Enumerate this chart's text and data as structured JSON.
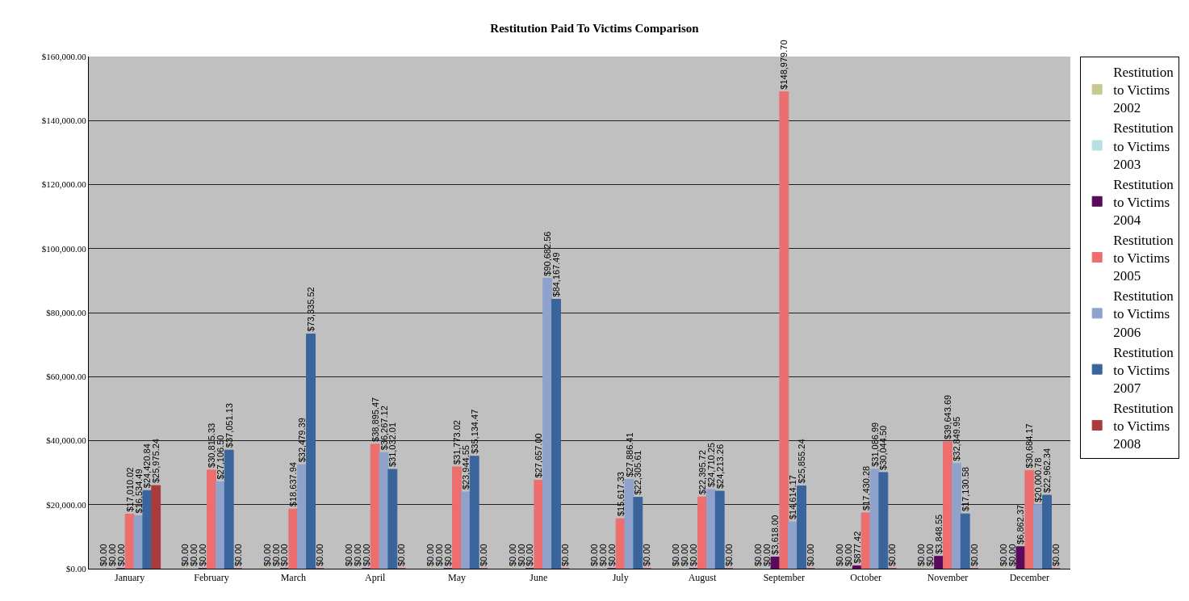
{
  "chart_data": {
    "type": "bar",
    "title": "Restitution Paid To Victims Comparison",
    "categories": [
      "January",
      "February",
      "March",
      "April",
      "May",
      "June",
      "July",
      "August",
      "September",
      "October",
      "November",
      "December"
    ],
    "series": [
      {
        "name": "Restitution to Victims 2002",
        "color": "#c8c890",
        "values": [
          0,
          0,
          0,
          0,
          0,
          0,
          0,
          0,
          0,
          0,
          0,
          0
        ],
        "value_labels": [
          "$0.00",
          "$0.00",
          "$0.00",
          "$0.00",
          "$0.00",
          "$0.00",
          "$0.00",
          "$0.00",
          "$0.00",
          "$0.00",
          "$0.00",
          "$0.00"
        ]
      },
      {
        "name": "Restitution to Victims 2003",
        "color": "#b8e0e0",
        "values": [
          0,
          0,
          0,
          0,
          0,
          0,
          0,
          0,
          0,
          0,
          0,
          0
        ],
        "value_labels": [
          "$0.00",
          "$0.00",
          "$0.00",
          "$0.00",
          "$0.00",
          "$0.00",
          "$0.00",
          "$0.00",
          "$0.00",
          "$0.00",
          "$0.00",
          "$0.00"
        ]
      },
      {
        "name": "Restitution to Victims 2004",
        "color": "#5a0a5a",
        "values": [
          0,
          0,
          0,
          0,
          0,
          0,
          0,
          0,
          3618.0,
          877.42,
          3848.55,
          6862.37
        ],
        "value_labels": [
          "$0.00",
          "$0.00",
          "$0.00",
          "$0.00",
          "$0.00",
          "$0.00",
          "$0.00",
          "$0.00",
          "$3,618.00",
          "$877.42",
          "$3,848.55",
          "$6,862.37"
        ]
      },
      {
        "name": "Restitution to Victims 2005",
        "color": "#ec6e6e",
        "values": [
          17010.02,
          30815.33,
          18637.94,
          38895.47,
          31773.02,
          27657.0,
          15617.33,
          22395.72,
          148979.7,
          17430.28,
          39643.69,
          30684.17
        ],
        "value_labels": [
          "$17,010.02",
          "$30,815.33",
          "$18,637.94",
          "$38,895.47",
          "$31,773.02",
          "$27,657.00",
          "$15,617.33",
          "$22,395.72",
          "$148,979.70",
          "$17,430.28",
          "$39,643.69",
          "$30,684.17"
        ]
      },
      {
        "name": "Restitution to Victims 2006",
        "color": "#8ea2cc",
        "values": [
          16534.49,
          27106.5,
          32479.39,
          36267.12,
          23944.55,
          90682.56,
          27886.41,
          24710.25,
          14614.17,
          31086.99,
          32849.95,
          20000.78
        ],
        "value_labels": [
          "$16,534.49",
          "$27,106.50",
          "$32,479.39",
          "$36,267.12",
          "$23,944.55",
          "$90,682.56",
          "$27,886.41",
          "$24,710.25",
          "$14,614.17",
          "$31,086.99",
          "$32,849.95",
          "$20,000.78"
        ]
      },
      {
        "name": "Restitution to Victims 2007",
        "color": "#3a659c",
        "values": [
          24420.84,
          37051.13,
          73335.52,
          31032.01,
          35134.47,
          84167.49,
          22305.61,
          24213.26,
          25855.24,
          30044.5,
          17130.58,
          22962.34
        ],
        "value_labels": [
          "$24,420.84",
          "$37,051.13",
          "$73,335.52",
          "$31,032.01",
          "$35,134.47",
          "$84,167.49",
          "$22,305.61",
          "$24,213.26",
          "$25,855.24",
          "$30,044.50",
          "$17,130.58",
          "$22,962.34"
        ]
      },
      {
        "name": "Restitution to Victims 2008",
        "color": "#a83c3c",
        "values": [
          25975.24,
          0,
          0,
          0,
          0,
          0,
          0,
          0,
          0,
          0,
          0,
          0
        ],
        "value_labels": [
          "$25,975.24",
          "$0.00",
          "$0.00",
          "$0.00",
          "$0.00",
          "$0.00",
          "$0.00",
          "$0.00",
          "$0.00",
          "$0.00",
          "$0.00",
          "$0.00"
        ]
      }
    ],
    "ylim": [
      0,
      160000
    ],
    "yticks": [
      {
        "value": 0,
        "label": "$0.00"
      },
      {
        "value": 20000,
        "label": "$20,000.00"
      },
      {
        "value": 40000,
        "label": "$40,000.00"
      },
      {
        "value": 60000,
        "label": "$60,000.00"
      },
      {
        "value": 80000,
        "label": "$80,000.00"
      },
      {
        "value": 100000,
        "label": "$100,000.00"
      },
      {
        "value": 120000,
        "label": "$120,000.00"
      },
      {
        "value": 140000,
        "label": "$140,000.00"
      },
      {
        "value": 160000,
        "label": "$160,000.00"
      }
    ],
    "grid": "y",
    "legend": "right"
  }
}
